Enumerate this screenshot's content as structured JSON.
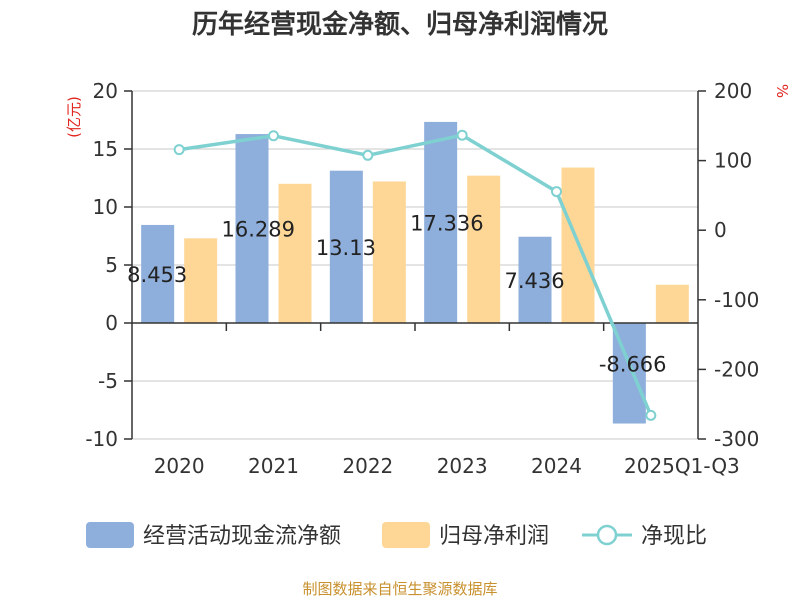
{
  "title": "历年经营现金净额、归母净利润情况",
  "source": "制图数据来自恒生聚源数据库",
  "colors": {
    "cash": "#8eaedb",
    "profit": "#fed797",
    "ratio": "#7fd1d1",
    "unit": "#e0261e"
  },
  "chart_data": {
    "type": "bar+line",
    "categories": [
      "2020",
      "2021",
      "2022",
      "2023",
      "2024",
      "2025Q1-Q3"
    ],
    "series": [
      {
        "name": "经营活动现金流净额",
        "axis": "left",
        "type": "bar",
        "values": [
          8.453,
          16.289,
          13.13,
          17.336,
          7.436,
          -8.666
        ],
        "labels": [
          "8.453",
          "16.289",
          "13.13",
          "17.336",
          "7.436",
          "-8.666"
        ]
      },
      {
        "name": "归母净利润",
        "axis": "left",
        "type": "bar",
        "values": [
          7.3,
          12.0,
          12.2,
          12.7,
          13.4,
          3.3
        ]
      },
      {
        "name": "净现比",
        "axis": "right",
        "type": "line",
        "values": [
          115.8,
          135.7,
          107.6,
          136.5,
          55.5,
          -266
        ]
      }
    ],
    "left_axis": {
      "label": "(亿元)",
      "min": -10,
      "max": 20,
      "ticks": [
        20,
        15,
        10,
        5,
        0,
        -5,
        -10
      ]
    },
    "right_axis": {
      "label": "%",
      "min": -300,
      "max": 200,
      "ticks": [
        200,
        100,
        0,
        -100,
        -200,
        -300
      ]
    },
    "legend": [
      "经营活动现金流净额",
      "归母净利润",
      "净现比"
    ]
  }
}
